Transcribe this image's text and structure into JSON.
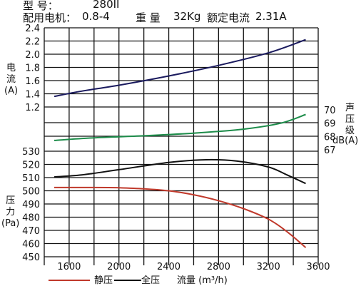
{
  "header": {
    "model_label": "型    号：",
    "model_value": "280II",
    "motor_label": "配用电机：",
    "motor_value": "0.8-4",
    "weight_label": "重 量",
    "weight_value": "32Kg",
    "rated_current_label": "额定电流",
    "rated_current_value": "2.31A"
  },
  "axes": {
    "current_label": "电\n流\n(A)",
    "pressure_label": "压\n力\n(Pa)",
    "sound_label_chars": "声\n压\n级",
    "sound_unit": "dB(A)",
    "x_label": "流量 (m³/h)"
  },
  "legend": {
    "static_label": "静压",
    "total_label": "全压"
  },
  "chart_data": {
    "type": "line",
    "x_ticks": [
      1600,
      2000,
      2400,
      2800,
      3200,
      3600
    ],
    "x_range": [
      1400,
      3600
    ],
    "panels": {
      "current": {
        "ticks": [
          "1.2",
          "1.4",
          "1.6",
          "1.8",
          "2.0",
          "2.2",
          "2.4"
        ],
        "range": [
          1.2,
          2.4
        ]
      },
      "sound": {
        "ticks": [
          "67",
          "68",
          "69",
          "70"
        ],
        "range": [
          67,
          70
        ]
      },
      "pressure": {
        "ticks": [
          "450",
          "460",
          "470",
          "480",
          "490",
          "500",
          "510",
          "520",
          "530"
        ],
        "range": [
          450,
          530
        ]
      }
    },
    "series": [
      {
        "name": "current",
        "panel": "current",
        "color": "#1a1a5e",
        "points": [
          [
            1480,
            1.36
          ],
          [
            1700,
            1.44
          ],
          [
            2000,
            1.53
          ],
          [
            2400,
            1.67
          ],
          [
            2800,
            1.83
          ],
          [
            3200,
            2.02
          ],
          [
            3500,
            2.22
          ]
        ]
      },
      {
        "name": "sound",
        "panel": "sound",
        "color": "#1d8c4a",
        "points": [
          [
            1480,
            67.7
          ],
          [
            1800,
            67.9
          ],
          [
            2200,
            68.05
          ],
          [
            2600,
            68.25
          ],
          [
            3000,
            68.55
          ],
          [
            3300,
            69.0
          ],
          [
            3500,
            69.65
          ]
        ]
      },
      {
        "name": "全压",
        "panel": "pressure",
        "color": "#111111",
        "points": [
          [
            1480,
            510.5
          ],
          [
            1700,
            512
          ],
          [
            2000,
            516
          ],
          [
            2400,
            521.5
          ],
          [
            2700,
            523.5
          ],
          [
            2950,
            522.5
          ],
          [
            3200,
            518
          ],
          [
            3350,
            512
          ],
          [
            3500,
            505.5
          ]
        ]
      },
      {
        "name": "静压",
        "panel": "pressure",
        "color": "#c0392b",
        "points": [
          [
            1480,
            502.5
          ],
          [
            1800,
            502.5
          ],
          [
            2000,
            502.3
          ],
          [
            2200,
            501.5
          ],
          [
            2400,
            500
          ],
          [
            2600,
            497
          ],
          [
            2800,
            492.5
          ],
          [
            3000,
            486.5
          ],
          [
            3200,
            478.5
          ],
          [
            3350,
            469
          ],
          [
            3500,
            457
          ]
        ]
      }
    ]
  }
}
